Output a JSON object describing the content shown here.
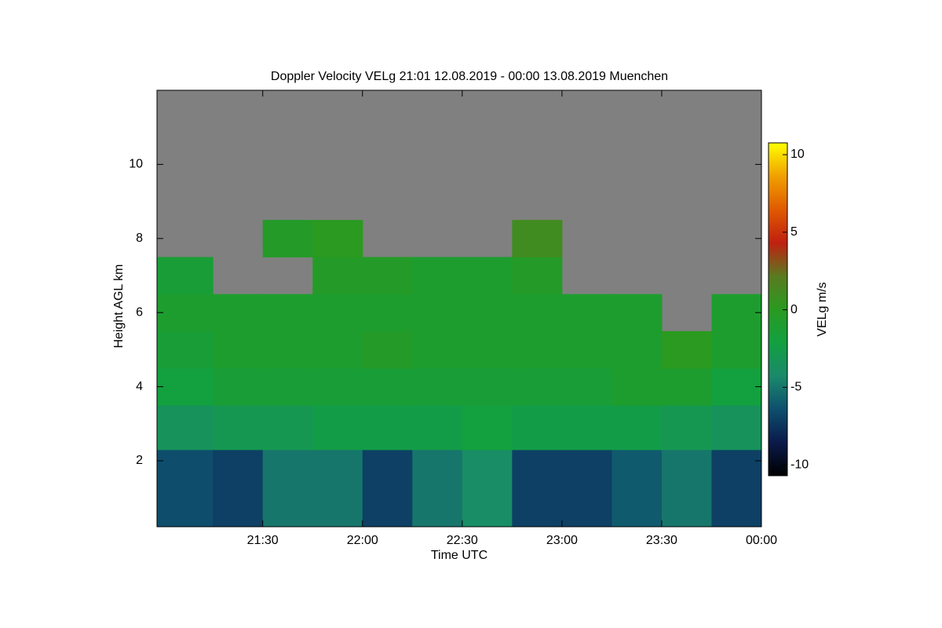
{
  "chart_data": {
    "type": "heatmap",
    "title": "Doppler Velocity VELg   21:01 12.08.2019 - 00:00 13.08.2019 Muenchen",
    "x_label": "Time UTC",
    "y_label": "Height AGL km",
    "colorbar_label": "VELg m/s",
    "x_edges": [
      20.97,
      21.25,
      21.5,
      21.75,
      22.0,
      22.25,
      22.5,
      22.75,
      23.0,
      23.25,
      23.5,
      23.75,
      24.0
    ],
    "y_edges": [
      0.22,
      2.3,
      3.5,
      4.5,
      5.5,
      6.5,
      7.5,
      8.5,
      12
    ],
    "values": [
      [
        -6.5,
        -7,
        -5,
        -5,
        -7,
        -5,
        -4,
        -7,
        -7,
        -6,
        -5,
        -7
      ],
      [
        -3.5,
        -3,
        -3,
        -2.5,
        -2.5,
        -2.5,
        -2,
        -2.5,
        -2.5,
        -2.5,
        -3,
        -3.5
      ],
      [
        -2,
        -1.5,
        -1.5,
        -1.5,
        -1.5,
        -1.5,
        -1.5,
        -1.5,
        -1.5,
        -1,
        -1,
        -2
      ],
      [
        -1.5,
        -1,
        -1,
        -1,
        -0.5,
        -1,
        -1,
        -1,
        -1,
        -1,
        0,
        -1
      ],
      [
        -1,
        -1,
        -1,
        -1,
        -1,
        -1,
        -1,
        -1,
        -1,
        -1,
        null,
        -1
      ],
      [
        -1.5,
        null,
        null,
        -0.5,
        -0.5,
        -1,
        -1,
        -0.5,
        null,
        null,
        null,
        null
      ],
      [
        null,
        null,
        -0.5,
        0,
        null,
        null,
        null,
        1,
        null,
        null,
        null,
        null
      ],
      [
        null,
        null,
        null,
        null,
        null,
        null,
        null,
        null,
        null,
        null,
        null,
        null
      ]
    ],
    "xlim": [
      20.97,
      24.0
    ],
    "xticks": [
      {
        "value": 21.5,
        "label": "21:30"
      },
      {
        "value": 22.0,
        "label": "22:00"
      },
      {
        "value": 22.5,
        "label": "22:30"
      },
      {
        "value": 23.0,
        "label": "23:00"
      },
      {
        "value": 23.5,
        "label": "23:30"
      },
      {
        "value": 24.0,
        "label": "00:00"
      }
    ],
    "ylim": [
      0.22,
      12
    ],
    "yticks": [
      2,
      4,
      6,
      8,
      10
    ],
    "clim": [
      -10.7,
      10.76
    ],
    "cticks": [
      -10,
      -5,
      0,
      5,
      10
    ],
    "colormap": [
      "#000000",
      "#0a1a4a",
      "#0e4f6e",
      "#1a8a6a",
      "#12a040",
      "#2a9a20",
      "#5a7a20",
      "#c02010",
      "#e05a00",
      "#f0a000",
      "#ffff00"
    ],
    "no_data_color": "#808080"
  }
}
